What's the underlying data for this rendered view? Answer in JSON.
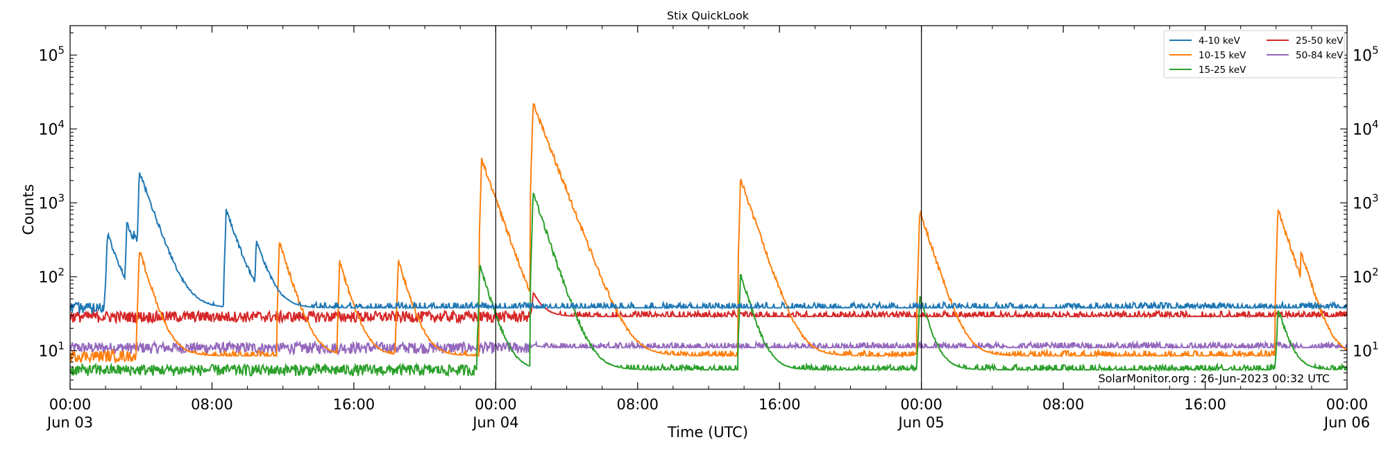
{
  "chart_data": {
    "type": "line",
    "title": "Stix QuickLook",
    "xlabel": "Time (UTC)",
    "ylabel": "Counts",
    "yscale": "log",
    "ylim": [
      3,
      250000
    ],
    "xlim_hours": [
      0,
      72
    ],
    "x_ticks": [
      {
        "hour": 0,
        "time": "00:00",
        "date": "Jun 03"
      },
      {
        "hour": 8,
        "time": "08:00",
        "date": ""
      },
      {
        "hour": 16,
        "time": "16:00",
        "date": ""
      },
      {
        "hour": 24,
        "time": "00:00",
        "date": "Jun 04"
      },
      {
        "hour": 32,
        "time": "08:00",
        "date": ""
      },
      {
        "hour": 40,
        "time": "16:00",
        "date": ""
      },
      {
        "hour": 48,
        "time": "00:00",
        "date": "Jun 05"
      },
      {
        "hour": 56,
        "time": "08:00",
        "date": ""
      },
      {
        "hour": 64,
        "time": "16:00",
        "date": ""
      },
      {
        "hour": 72,
        "time": "00:00",
        "date": "Jun 06"
      }
    ],
    "y_ticks": [
      {
        "value": 10,
        "exp": "1"
      },
      {
        "value": 100,
        "exp": "2"
      },
      {
        "value": 1000,
        "exp": "3"
      },
      {
        "value": 10000,
        "exp": "4"
      },
      {
        "value": 100000,
        "exp": "5"
      }
    ],
    "y_tick_base": "10",
    "day_boundaries_hours": [
      24,
      48
    ],
    "legend": {
      "placement": "top-right",
      "columns": 2
    },
    "annotation": "SolarMonitor.org : 26-Jun-2023 00:32 UTC",
    "series": [
      {
        "name": "4-10 keV",
        "color": "#1f77b4",
        "baseline": 38,
        "peaks": [
          {
            "h": 2.1,
            "v": 420
          },
          {
            "h": 3.2,
            "v": 600
          },
          {
            "h": 3.6,
            "v": 420
          },
          {
            "h": 3.9,
            "v": 2900
          },
          {
            "h": 8.8,
            "v": 870
          },
          {
            "h": 10.5,
            "v": 330
          },
          {
            "h": 10.5,
            "v": 330
          },
          {
            "h": 10.5,
            "v": 330
          },
          {
            "h": 10.5,
            "v": 330
          },
          {
            "h": 10.5,
            "v": 330
          },
          {
            "h": 10.5,
            "v": 330
          },
          {
            "h": 10.5,
            "v": 330
          },
          {
            "h": 10.5,
            "v": 330
          },
          {
            "h": 10.5,
            "v": 330
          },
          {
            "h": 10.5,
            "v": 330
          }
        ]
      },
      {
        "name": "10-15 keV",
        "color": "#ff7f0e",
        "baseline": 8.5,
        "peaks": [
          {
            "h": 3.9,
            "v": 250
          },
          {
            "h": 11.8,
            "v": 320
          },
          {
            "h": 15.2,
            "v": 170
          },
          {
            "h": 18.5,
            "v": 180
          },
          {
            "h": 23.2,
            "v": 4200
          },
          {
            "h": 26.1,
            "v": 24000
          },
          {
            "h": 37.8,
            "v": 2300
          },
          {
            "h": 47.9,
            "v": 850
          },
          {
            "h": 68.1,
            "v": 900
          },
          {
            "h": 69.4,
            "v": 240
          }
        ]
      },
      {
        "name": "15-25 keV",
        "color": "#2ca02c",
        "baseline": 5.5,
        "peaks": [
          {
            "h": 23.1,
            "v": 160
          },
          {
            "h": 26.1,
            "v": 1500
          },
          {
            "h": 37.8,
            "v": 120
          },
          {
            "h": 47.9,
            "v": 60
          },
          {
            "h": 68.1,
            "v": 40
          }
        ]
      },
      {
        "name": "25-50 keV",
        "color": "#d62728",
        "baseline": 29,
        "peaks": [
          {
            "h": 26.1,
            "v": 65
          }
        ]
      },
      {
        "name": "50-84 keV",
        "color": "#9467bd",
        "baseline": 11,
        "peaks": [
          {
            "h": 26.1,
            "v": 12
          }
        ]
      }
    ]
  }
}
